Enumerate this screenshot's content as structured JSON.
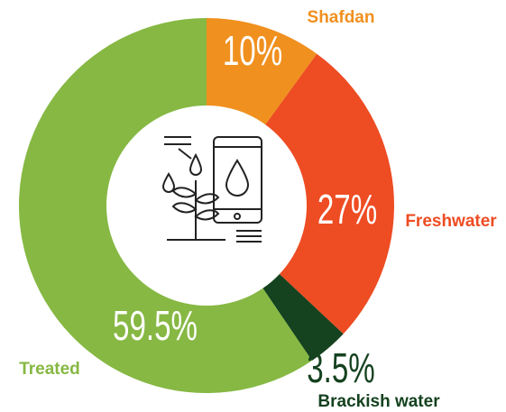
{
  "chart_data": {
    "type": "donut",
    "categories": [
      "Shafdan",
      "Freshwater",
      "Brackish water",
      "Treated"
    ],
    "values": [
      10,
      27,
      3.5,
      59.5
    ],
    "value_labels": [
      "10%",
      "27%",
      "3.5%",
      "59.5%"
    ],
    "colors": [
      "#f0901e",
      "#ee4c23",
      "#15421f",
      "#86b843"
    ]
  }
}
